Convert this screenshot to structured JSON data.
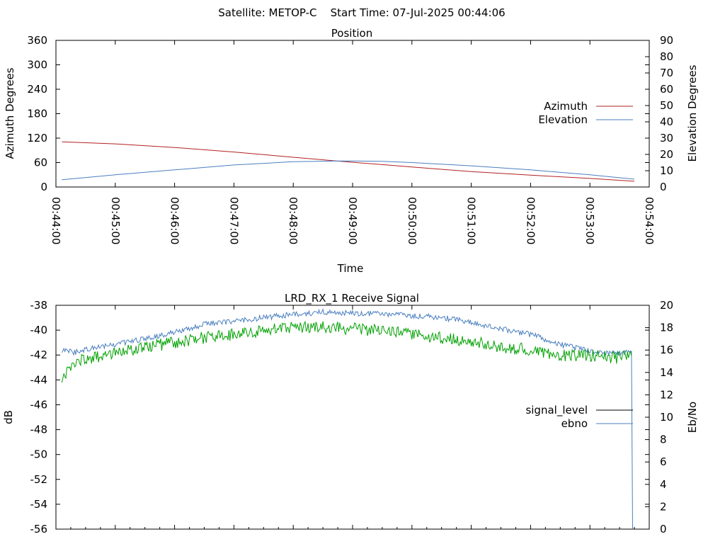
{
  "header": {
    "title": "Satellite: METOP-C    Start Time: 07-Jul-2025 00:44:06"
  },
  "chart_data": [
    {
      "id": "position",
      "type": "line",
      "title": "Position",
      "xlabel": "Time",
      "ylabel": "Azimuth Degrees",
      "y2label": "Elevation Degrees",
      "x_ticks": [
        "00:44:00",
        "00:45:00",
        "00:46:00",
        "00:47:00",
        "00:48:00",
        "00:49:00",
        "00:50:00",
        "00:51:00",
        "00:52:00",
        "00:53:00",
        "00:54:00"
      ],
      "xlim_minutes": [
        0,
        10
      ],
      "ylim": [
        0,
        360
      ],
      "y_ticks": [
        0,
        60,
        120,
        180,
        240,
        300,
        360
      ],
      "y2lim": [
        0,
        90
      ],
      "y2_ticks": [
        0,
        10,
        20,
        30,
        40,
        50,
        60,
        70,
        80,
        90
      ],
      "legend_position": "right",
      "grid": false,
      "series": [
        {
          "name": "Azimuth",
          "axis": "y",
          "color": "#b22222",
          "x_minutes": [
            0.1,
            1.0,
            2.0,
            3.0,
            4.0,
            4.8,
            5.5,
            6.0,
            7.0,
            8.0,
            9.0,
            9.75
          ],
          "values": [
            111,
            106,
            97,
            86,
            73,
            63,
            55,
            49,
            38,
            29,
            21,
            14
          ]
        },
        {
          "name": "Elevation",
          "axis": "y2",
          "color": "#4a7fc0",
          "x_minutes": [
            0.1,
            1.0,
            2.0,
            3.0,
            4.0,
            4.8,
            5.5,
            6.0,
            7.0,
            8.0,
            9.0,
            9.75
          ],
          "values": [
            4.5,
            7.5,
            10.5,
            13.5,
            15.5,
            16.0,
            15.8,
            15.0,
            13.0,
            10.5,
            7.5,
            4.8
          ]
        }
      ]
    },
    {
      "id": "receive-signal",
      "type": "line",
      "title": "LRD_RX_1 Receive Signal",
      "xlabel": "",
      "ylabel": "dB",
      "y2label": "Eb/No",
      "xlim_minutes": [
        0,
        10
      ],
      "ylim": [
        -56,
        -38
      ],
      "y_ticks": [
        -56,
        -54,
        -52,
        -50,
        -48,
        -46,
        -44,
        -42,
        -40,
        -38
      ],
      "y2lim": [
        0,
        20
      ],
      "y2_ticks": [
        0,
        2,
        4,
        6,
        8,
        10,
        12,
        14,
        16,
        18,
        20
      ],
      "legend_position": "right",
      "grid": false,
      "series": [
        {
          "name": "signal_level",
          "axis": "y",
          "color": "#000000",
          "legend_only": true,
          "x_minutes": [],
          "values": []
        },
        {
          "name": "ebno",
          "axis": "y2",
          "color": "#4a7fc0",
          "x_minutes": [
            0.1,
            0.3,
            0.6,
            1.0,
            1.5,
            2.0,
            2.5,
            3.0,
            3.5,
            4.0,
            4.5,
            5.0,
            5.5,
            6.0,
            6.5,
            7.0,
            7.5,
            8.0,
            8.5,
            9.0,
            9.5,
            9.7,
            9.71,
            9.72
          ],
          "values": [
            16.0,
            15.8,
            16.2,
            16.5,
            17.0,
            17.6,
            18.3,
            18.6,
            18.9,
            19.2,
            19.4,
            19.3,
            19.2,
            19.1,
            18.9,
            18.5,
            17.9,
            17.4,
            16.5,
            15.9,
            15.7,
            15.9,
            8.0,
            0.0
          ]
        },
        {
          "name": "",
          "axis": "y2",
          "color": "#00a000",
          "x_minutes": [
            0.1,
            0.3,
            0.6,
            1.0,
            1.5,
            2.0,
            2.5,
            3.0,
            3.5,
            4.0,
            4.5,
            5.0,
            5.5,
            6.0,
            6.5,
            7.0,
            7.5,
            8.0,
            8.5,
            9.0,
            9.5,
            9.7
          ],
          "values": [
            13.5,
            15.0,
            15.3,
            15.8,
            16.2,
            16.7,
            17.1,
            17.4,
            17.7,
            18.1,
            18.1,
            17.9,
            17.7,
            17.4,
            17.1,
            16.8,
            16.3,
            16.0,
            15.5,
            15.5,
            15.3,
            15.5
          ]
        }
      ]
    }
  ]
}
